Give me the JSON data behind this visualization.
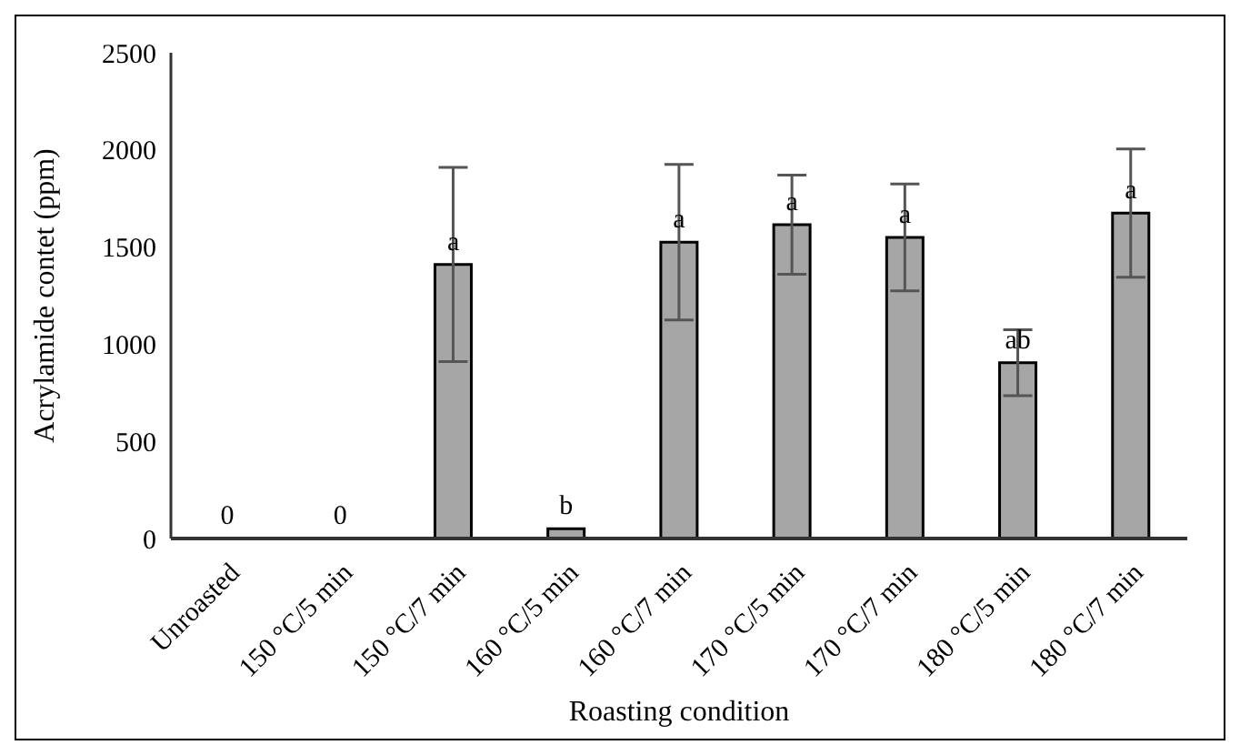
{
  "chart_data": {
    "type": "bar",
    "xlabel": "Roasting condition",
    "ylabel": "Acrylamide contet (ppm)",
    "categories": [
      "Unroasted",
      "150 °C/5 min",
      "150 °C/7 min",
      "160 °C/5 min",
      "160 °C/7 min",
      "170 °C/5 min",
      "170 °C/7 min",
      "180 °C/5 min",
      "180 °C/7 min"
    ],
    "values": [
      0,
      0,
      1410,
      50,
      1525,
      1615,
      1550,
      905,
      1675
    ],
    "errors": [
      null,
      null,
      500,
      null,
      400,
      255,
      275,
      170,
      330
    ],
    "color": "#a6a6a6",
    "ylim": [
      0,
      2500
    ],
    "yticks": [
      0,
      500,
      1000,
      1500,
      2000,
      2500
    ],
    "grid": false,
    "legend": false,
    "annotations": [
      {
        "text": "0",
        "x": "Unroasted",
        "y": 0
      },
      {
        "text": "0",
        "x": "150 °C/5 min",
        "y": 0
      },
      {
        "text": "a",
        "x": "150 °C/7 min",
        "y": 1410
      },
      {
        "text": "b",
        "x": "160 °C/5 min",
        "y": 50
      },
      {
        "text": "a",
        "x": "160 °C/7 min",
        "y": 1525
      },
      {
        "text": "a",
        "x": "170 °C/5 min",
        "y": 1615
      },
      {
        "text": "a",
        "x": "170 °C/7 min",
        "y": 1550
      },
      {
        "text": "ab",
        "x": "180 °C/5 min",
        "y": 905
      },
      {
        "text": "a",
        "x": "180 °C/7 min",
        "y": 1675
      }
    ]
  }
}
